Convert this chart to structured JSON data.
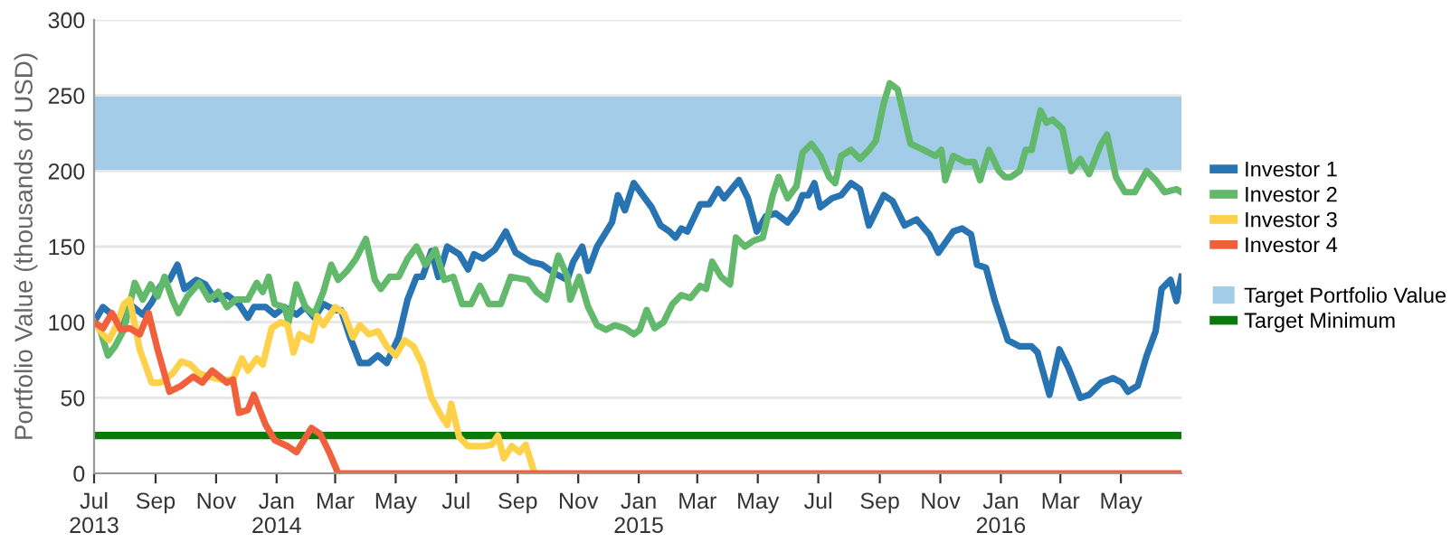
{
  "chart_data": {
    "type": "line",
    "ylabel": "Portfolio Value (thousands of USD)",
    "ylim": [
      0,
      300
    ],
    "yticks": [
      0,
      50,
      100,
      150,
      200,
      250,
      300
    ],
    "xlim": [
      "2013-07-01",
      "2016-07-01"
    ],
    "xticks": [
      {
        "value": "2013-07-01",
        "label": "Jul\n2013"
      },
      {
        "value": "2013-09-01",
        "label": "Sep"
      },
      {
        "value": "2013-11-01",
        "label": "Nov"
      },
      {
        "value": "2014-01-01",
        "label": "Jan\n2014"
      },
      {
        "value": "2014-03-01",
        "label": "Mar"
      },
      {
        "value": "2014-05-01",
        "label": "May"
      },
      {
        "value": "2014-07-01",
        "label": "Jul"
      },
      {
        "value": "2014-09-01",
        "label": "Sep"
      },
      {
        "value": "2014-11-01",
        "label": "Nov"
      },
      {
        "value": "2015-01-01",
        "label": "Jan\n2015"
      },
      {
        "value": "2015-03-01",
        "label": "Mar"
      },
      {
        "value": "2015-05-01",
        "label": "May"
      },
      {
        "value": "2015-07-01",
        "label": "Jul"
      },
      {
        "value": "2015-09-01",
        "label": "Sep"
      },
      {
        "value": "2015-11-01",
        "label": "Nov"
      },
      {
        "value": "2016-01-01",
        "label": "Jan\n2016"
      },
      {
        "value": "2016-03-01",
        "label": "Mar"
      },
      {
        "value": "2016-05-01",
        "label": "May"
      }
    ],
    "grid": "y",
    "legend": "right",
    "marker": "none",
    "line_style": "solid",
    "series": [
      {
        "name": "Investor 1",
        "color": "#2874b2",
        "x": [
          "2013-07-01",
          "2013-07-10",
          "2013-07-19",
          "2013-07-28",
          "2013-08-06",
          "2013-08-19",
          "2013-08-28",
          "2013-09-06",
          "2013-09-15",
          "2013-09-23",
          "2013-09-30",
          "2013-10-12",
          "2013-10-21",
          "2013-10-31",
          "2013-11-12",
          "2013-11-24",
          "2013-12-03",
          "2013-12-09",
          "2013-12-21",
          "2013-12-30",
          "2014-01-09",
          "2014-01-21",
          "2014-01-30",
          "2014-02-08",
          "2014-02-17",
          "2014-03-01",
          "2014-03-07",
          "2014-03-16",
          "2014-03-26",
          "2014-04-04",
          "2014-04-13",
          "2014-04-22",
          "2014-05-04",
          "2014-05-13",
          "2014-05-22",
          "2014-05-28",
          "2014-06-06",
          "2014-06-13",
          "2014-06-22",
          "2014-07-04",
          "2014-07-13",
          "2014-07-19",
          "2014-07-28",
          "2014-08-09",
          "2014-08-20",
          "2014-08-30",
          "2014-09-14",
          "2014-09-26",
          "2014-10-09",
          "2014-10-21",
          "2014-10-27",
          "2014-11-05",
          "2014-11-11",
          "2014-11-20",
          "2014-12-05",
          "2014-12-11",
          "2014-12-18",
          "2014-12-27",
          "2015-01-05",
          "2015-01-14",
          "2015-01-23",
          "2015-02-01",
          "2015-02-07",
          "2015-02-13",
          "2015-02-19",
          "2015-03-04",
          "2015-03-13",
          "2015-03-22",
          "2015-03-28",
          "2015-04-12",
          "2015-04-21",
          "2015-04-30",
          "2015-05-09",
          "2015-05-19",
          "2015-05-31",
          "2015-06-09",
          "2015-06-15",
          "2015-06-21",
          "2015-06-27",
          "2015-07-03",
          "2015-07-15",
          "2015-07-24",
          "2015-08-03",
          "2015-08-12",
          "2015-08-21",
          "2015-09-05",
          "2015-09-14",
          "2015-09-26",
          "2015-10-08",
          "2015-10-21",
          "2015-10-30",
          "2015-11-14",
          "2015-11-23",
          "2015-12-02",
          "2015-12-08",
          "2015-12-17",
          "2015-12-26",
          "2016-01-08",
          "2016-01-20",
          "2016-02-01",
          "2016-02-07",
          "2016-02-19",
          "2016-02-29",
          "2016-03-09",
          "2016-03-21",
          "2016-03-30",
          "2016-04-11",
          "2016-04-23",
          "2016-05-02",
          "2016-05-08",
          "2016-05-18",
          "2016-05-27",
          "2016-06-05",
          "2016-06-11",
          "2016-06-20",
          "2016-06-26",
          "2016-07-01"
        ],
        "values": [
          100,
          110,
          105,
          100,
          112,
          105,
          113,
          124,
          128,
          138,
          122,
          128,
          125,
          115,
          118,
          112,
          103,
          110,
          110,
          105,
          110,
          105,
          110,
          103,
          112,
          108,
          108,
          90,
          73,
          73,
          78,
          73,
          90,
          115,
          130,
          130,
          147,
          130,
          150,
          145,
          135,
          145,
          142,
          148,
          160,
          146,
          140,
          138,
          132,
          128,
          140,
          150,
          134,
          150,
          166,
          184,
          174,
          192,
          184,
          176,
          164,
          160,
          156,
          162,
          160,
          178,
          178,
          188,
          182,
          194,
          182,
          160,
          170,
          172,
          166,
          174,
          184,
          184,
          192,
          176,
          182,
          184,
          192,
          188,
          164,
          184,
          180,
          164,
          168,
          158,
          146,
          160,
          162,
          158,
          138,
          136,
          114,
          88,
          84,
          84,
          80,
          52,
          82,
          70,
          50,
          52,
          60,
          63,
          60,
          54,
          58,
          78,
          94,
          122,
          128,
          114,
          130
        ]
      },
      {
        "name": "Investor 2",
        "color": "#62b86b",
        "x": [
          "2013-07-01",
          "2013-07-07",
          "2013-07-15",
          "2013-07-22",
          "2013-07-31",
          "2013-08-06",
          "2013-08-11",
          "2013-08-19",
          "2013-08-27",
          "2013-09-03",
          "2013-09-10",
          "2013-09-18",
          "2013-09-24",
          "2013-10-03",
          "2013-10-15",
          "2013-10-25",
          "2013-11-03",
          "2013-11-12",
          "2013-11-21",
          "2013-12-03",
          "2013-12-12",
          "2013-12-18",
          "2013-12-24",
          "2013-12-30",
          "2014-01-09",
          "2014-01-13",
          "2014-01-21",
          "2014-01-30",
          "2014-02-08",
          "2014-02-17",
          "2014-02-25",
          "2014-03-04",
          "2014-03-13",
          "2014-03-22",
          "2014-04-01",
          "2014-04-10",
          "2014-04-16",
          "2014-04-25",
          "2014-05-04",
          "2014-05-13",
          "2014-05-22",
          "2014-05-31",
          "2014-06-10",
          "2014-06-19",
          "2014-06-28",
          "2014-07-07",
          "2014-07-16",
          "2014-07-25",
          "2014-08-03",
          "2014-08-15",
          "2014-08-25",
          "2014-09-11",
          "2014-09-20",
          "2014-09-30",
          "2014-10-12",
          "2014-10-21",
          "2014-10-24",
          "2014-11-02",
          "2014-11-11",
          "2014-11-20",
          "2014-11-29",
          "2014-12-08",
          "2014-12-18",
          "2014-12-27",
          "2015-01-02",
          "2015-01-09",
          "2015-01-17",
          "2015-01-26",
          "2015-02-04",
          "2015-02-13",
          "2015-02-22",
          "2015-03-04",
          "2015-03-10",
          "2015-03-16",
          "2015-03-25",
          "2015-04-03",
          "2015-04-09",
          "2015-04-18",
          "2015-04-27",
          "2015-05-06",
          "2015-05-16",
          "2015-05-22",
          "2015-05-31",
          "2015-06-09",
          "2015-06-15",
          "2015-06-24",
          "2015-07-03",
          "2015-07-12",
          "2015-07-18",
          "2015-07-24",
          "2015-08-03",
          "2015-08-12",
          "2015-08-21",
          "2015-08-28",
          "2015-09-05",
          "2015-09-11",
          "2015-09-19",
          "2015-10-02",
          "2015-10-15",
          "2015-10-27",
          "2015-11-02",
          "2015-11-06",
          "2015-11-14",
          "2015-11-26",
          "2015-12-05",
          "2015-12-11",
          "2015-12-20",
          "2015-12-30",
          "2016-01-05",
          "2016-01-11",
          "2016-01-20",
          "2016-01-26",
          "2016-02-01",
          "2016-02-10",
          "2016-02-16",
          "2016-02-22",
          "2016-03-03",
          "2016-03-12",
          "2016-03-21",
          "2016-03-30",
          "2016-04-11",
          "2016-04-17",
          "2016-04-26",
          "2016-05-05",
          "2016-05-15",
          "2016-05-27",
          "2016-06-05",
          "2016-06-14",
          "2016-06-26",
          "2016-07-01"
        ],
        "values": [
          100,
          95,
          78,
          84,
          95,
          112,
          126,
          115,
          125,
          117,
          130,
          115,
          106,
          117,
          126,
          115,
          120,
          110,
          115,
          115,
          126,
          120,
          130,
          112,
          110,
          100,
          125,
          110,
          105,
          120,
          138,
          128,
          134,
          142,
          155,
          128,
          122,
          130,
          130,
          142,
          150,
          138,
          148,
          128,
          130,
          112,
          112,
          124,
          112,
          112,
          130,
          128,
          120,
          115,
          144,
          130,
          115,
          130,
          110,
          98,
          95,
          98,
          96,
          92,
          95,
          108,
          96,
          100,
          112,
          118,
          116,
          124,
          122,
          140,
          130,
          125,
          156,
          150,
          154,
          156,
          184,
          196,
          182,
          190,
          212,
          218,
          210,
          196,
          192,
          210,
          214,
          208,
          214,
          220,
          245,
          258,
          254,
          218,
          214,
          210,
          214,
          194,
          210,
          206,
          206,
          194,
          214,
          200,
          196,
          196,
          200,
          214,
          214,
          240,
          232,
          234,
          228,
          200,
          208,
          198,
          218,
          224,
          196,
          186,
          186,
          200,
          194,
          186,
          188,
          186
        ]
      },
      {
        "name": "Investor 3",
        "color": "#fdd14a",
        "x": [
          "2013-07-01",
          "2013-07-10",
          "2013-07-16",
          "2013-07-25",
          "2013-07-31",
          "2013-08-06",
          "2013-08-16",
          "2013-08-28",
          "2013-09-06",
          "2013-09-18",
          "2013-09-27",
          "2013-10-06",
          "2013-10-15",
          "2013-10-25",
          "2013-11-06",
          "2013-11-18",
          "2013-11-27",
          "2013-12-03",
          "2013-12-12",
          "2013-12-18",
          "2013-12-27",
          "2014-01-05",
          "2014-01-12",
          "2014-01-18",
          "2014-01-24",
          "2014-02-05",
          "2014-02-11",
          "2014-02-17",
          "2014-03-01",
          "2014-03-10",
          "2014-03-19",
          "2014-03-26",
          "2014-04-04",
          "2014-04-13",
          "2014-04-22",
          "2014-05-01",
          "2014-05-10",
          "2014-05-19",
          "2014-05-28",
          "2014-06-06",
          "2014-06-16",
          "2014-06-22",
          "2014-06-26",
          "2014-07-04",
          "2014-07-13",
          "2014-07-28",
          "2014-08-06",
          "2014-08-12",
          "2014-08-18",
          "2014-08-26",
          "2014-09-03",
          "2014-09-09",
          "2014-09-18"
        ],
        "values": [
          100,
          92,
          88,
          100,
          112,
          115,
          82,
          60,
          60,
          66,
          74,
          72,
          66,
          64,
          62,
          62,
          76,
          68,
          76,
          72,
          96,
          100,
          98,
          80,
          92,
          88,
          104,
          98,
          110,
          106,
          90,
          98,
          92,
          94,
          84,
          78,
          88,
          84,
          72,
          50,
          38,
          32,
          46,
          24,
          18,
          18,
          19,
          25,
          10,
          18,
          14,
          19,
          0
        ]
      },
      {
        "name": "Investor 4",
        "color": "#f0603c",
        "x": [
          "2013-07-01",
          "2013-07-10",
          "2013-07-19",
          "2013-07-28",
          "2013-08-06",
          "2013-08-16",
          "2013-08-25",
          "2013-09-03",
          "2013-09-15",
          "2013-09-27",
          "2013-10-09",
          "2013-10-18",
          "2013-10-28",
          "2013-11-12",
          "2013-11-18",
          "2013-11-24",
          "2013-12-03",
          "2013-12-09",
          "2013-12-21",
          "2013-12-30",
          "2014-01-12",
          "2014-01-21",
          "2014-02-05",
          "2014-02-14",
          "2014-02-23",
          "2014-03-04",
          "2016-07-01"
        ],
        "values": [
          100,
          96,
          106,
          95,
          96,
          92,
          106,
          82,
          54,
          58,
          64,
          60,
          68,
          60,
          62,
          40,
          42,
          52,
          32,
          22,
          18,
          14,
          30,
          26,
          14,
          0,
          0
        ]
      }
    ],
    "bands": [
      {
        "axis": "y",
        "from": 200,
        "to": 250,
        "label": "Target Portfolio Value",
        "color": "#a3cce9"
      }
    ],
    "ref_lines": [
      {
        "axis": "y",
        "value": 25,
        "label": "Target Minimum",
        "color": "#0b7a0b",
        "line_style": "solid"
      }
    ]
  }
}
